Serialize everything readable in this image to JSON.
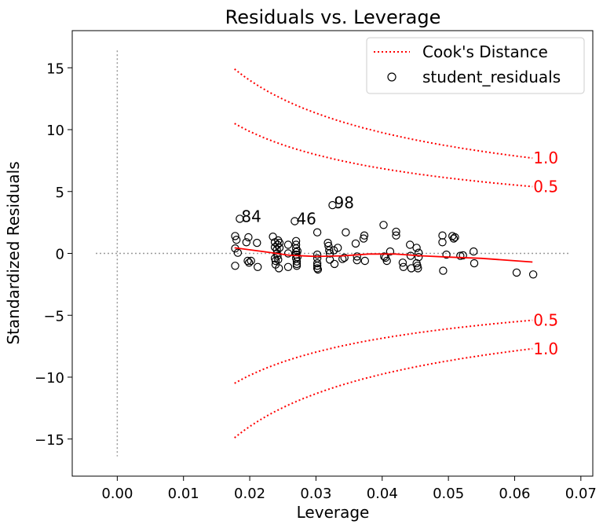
{
  "chart_data": {
    "type": "scatter",
    "title": "Residuals vs. Leverage",
    "xlabel": "Leverage",
    "ylabel": "Standardized Residuals",
    "xlim": [
      -0.0068,
      0.0718
    ],
    "ylim": [
      -18,
      18
    ],
    "xticks": [
      0.0,
      0.01,
      0.02,
      0.03,
      0.04,
      0.05,
      0.06,
      0.07
    ],
    "xtick_labels": [
      "0.00",
      "0.01",
      "0.02",
      "0.03",
      "0.04",
      "0.05",
      "0.06",
      "0.07"
    ],
    "yticks": [
      -15,
      -10,
      -5,
      0,
      5,
      10,
      15
    ],
    "ytick_labels": [
      "−15",
      "−10",
      "−5",
      "0",
      "5",
      "10",
      "15"
    ],
    "grid": false,
    "legend_placement": "top-right",
    "legend": [
      {
        "label": "Cook's Distance",
        "style": "dotted-line",
        "color": "#ff0000"
      },
      {
        "label": "student_residuals",
        "style": "open-circle",
        "color": "#000000"
      }
    ],
    "reference_lines": {
      "horizontal_y": 0,
      "vertical_x": 0,
      "color": "#999999",
      "style": "dotted"
    },
    "cooks_distance": {
      "color": "#ff0000",
      "style": "dotted",
      "x_range": [
        0.0177,
        0.0627
      ],
      "curves": [
        {
          "label": "1.0",
          "y_start": 14.9,
          "y_end": 7.7
        },
        {
          "label": "0.5",
          "y_start": 10.5,
          "y_end": 5.4
        },
        {
          "label": "0.5",
          "y_start": -10.5,
          "y_end": -5.4
        },
        {
          "label": "1.0",
          "y_start": -14.9,
          "y_end": -7.7
        }
      ]
    },
    "lowess": {
      "color": "#ff0000",
      "x": [
        0.0177,
        0.022,
        0.026,
        0.03,
        0.034,
        0.038,
        0.042,
        0.046,
        0.05,
        0.055,
        0.0627
      ],
      "y": [
        0.45,
        0.15,
        -0.15,
        -0.25,
        -0.2,
        -0.05,
        -0.05,
        -0.2,
        -0.3,
        -0.4,
        -0.7
      ]
    },
    "annotations": [
      {
        "label": "84",
        "x": 0.0185,
        "y": 2.8
      },
      {
        "label": "46",
        "x": 0.0268,
        "y": 2.6
      },
      {
        "label": "98",
        "x": 0.0325,
        "y": 3.9
      }
    ],
    "series": [
      {
        "name": "student_residuals",
        "marker": "open-circle",
        "color": "#000000",
        "points": [
          [
            0.0178,
            1.4
          ],
          [
            0.0178,
            0.4
          ],
          [
            0.0178,
            -1.0
          ],
          [
            0.018,
            1.1
          ],
          [
            0.0182,
            0.05
          ],
          [
            0.0185,
            2.8
          ],
          [
            0.0195,
            0.9
          ],
          [
            0.0197,
            -0.6
          ],
          [
            0.0198,
            1.3
          ],
          [
            0.0199,
            -0.75
          ],
          [
            0.0202,
            -0.6
          ],
          [
            0.0212,
            -1.1
          ],
          [
            0.0211,
            0.85
          ],
          [
            0.0235,
            1.35
          ],
          [
            0.0238,
            0.9
          ],
          [
            0.0238,
            0.5
          ],
          [
            0.0238,
            -0.4
          ],
          [
            0.0239,
            -0.6
          ],
          [
            0.0239,
            -0.9
          ],
          [
            0.0241,
            0.3
          ],
          [
            0.0241,
            0.0
          ],
          [
            0.0242,
            0.7
          ],
          [
            0.0242,
            -0.2
          ],
          [
            0.0243,
            1.05
          ],
          [
            0.0243,
            -0.5
          ],
          [
            0.0244,
            -1.2
          ],
          [
            0.0245,
            0.85
          ],
          [
            0.0245,
            0.45
          ],
          [
            0.0258,
            0.7
          ],
          [
            0.0258,
            -1.1
          ],
          [
            0.0258,
            0.0
          ],
          [
            0.0268,
            2.6
          ],
          [
            0.027,
            1.0
          ],
          [
            0.027,
            0.7
          ],
          [
            0.027,
            0.4
          ],
          [
            0.027,
            0.1
          ],
          [
            0.027,
            -0.1
          ],
          [
            0.027,
            -0.4
          ],
          [
            0.0271,
            -0.65
          ],
          [
            0.0271,
            -0.85
          ],
          [
            0.0271,
            -1.0
          ],
          [
            0.0272,
            0.2
          ],
          [
            0.0272,
            -0.3
          ],
          [
            0.0302,
            1.7
          ],
          [
            0.0302,
            -0.1
          ],
          [
            0.0302,
            -0.4
          ],
          [
            0.0302,
            -0.8
          ],
          [
            0.0302,
            -1.0
          ],
          [
            0.0302,
            -1.2
          ],
          [
            0.0303,
            -1.3
          ],
          [
            0.0318,
            0.85
          ],
          [
            0.0319,
            0.6
          ],
          [
            0.032,
            0.25
          ],
          [
            0.0321,
            0.0
          ],
          [
            0.0321,
            -0.5
          ],
          [
            0.0325,
            3.9
          ],
          [
            0.0327,
            0.25
          ],
          [
            0.0328,
            -0.85
          ],
          [
            0.0333,
            0.45
          ],
          [
            0.034,
            -0.45
          ],
          [
            0.0343,
            -0.35
          ],
          [
            0.0345,
            1.7
          ],
          [
            0.036,
            0.8
          ],
          [
            0.0362,
            -0.25
          ],
          [
            0.0362,
            -0.55
          ],
          [
            0.0372,
            1.2
          ],
          [
            0.0373,
            1.45
          ],
          [
            0.0374,
            -0.6
          ],
          [
            0.0402,
            2.3
          ],
          [
            0.0403,
            -0.25
          ],
          [
            0.0405,
            -0.35
          ],
          [
            0.0407,
            -0.6
          ],
          [
            0.0412,
            0.15
          ],
          [
            0.0421,
            1.45
          ],
          [
            0.0421,
            1.75
          ],
          [
            0.0431,
            -0.75
          ],
          [
            0.0432,
            -1.1
          ],
          [
            0.0442,
            0.7
          ],
          [
            0.0443,
            -0.2
          ],
          [
            0.0444,
            -1.2
          ],
          [
            0.0452,
            0.45
          ],
          [
            0.0452,
            -0.8
          ],
          [
            0.0453,
            -1.0
          ],
          [
            0.0454,
            -1.2
          ],
          [
            0.0455,
            0.05
          ],
          [
            0.0455,
            -0.3
          ],
          [
            0.0491,
            1.45
          ],
          [
            0.0491,
            0.9
          ],
          [
            0.0492,
            -1.4
          ],
          [
            0.0497,
            -0.1
          ],
          [
            0.0506,
            1.4
          ],
          [
            0.0508,
            1.2
          ],
          [
            0.051,
            1.3
          ],
          [
            0.0518,
            -0.2
          ],
          [
            0.0522,
            -0.15
          ],
          [
            0.0538,
            0.15
          ],
          [
            0.0539,
            -0.8
          ],
          [
            0.0603,
            -1.55
          ],
          [
            0.0628,
            -1.7
          ]
        ]
      }
    ]
  }
}
